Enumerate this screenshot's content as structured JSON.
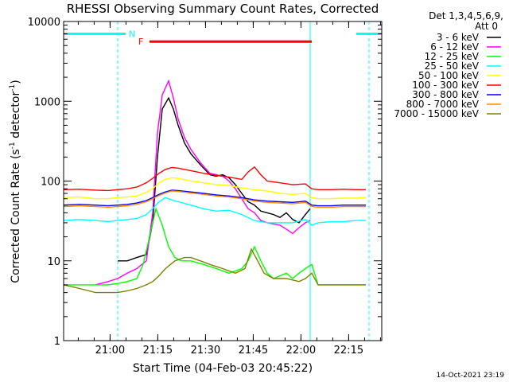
{
  "chart_data": {
    "type": "line",
    "title": "RHESSI Observing Summary Count Rates, Corrected",
    "xlabel": "Start Time (04-Feb-03 20:45:22)",
    "ylabel_main": "Corrected Count Rate (s",
    "ylabel_sup1": "-1",
    "ylabel_mid": " detector",
    "ylabel_sup2": "-1",
    "ylabel_end": ")",
    "yscale": "log",
    "ylim": [
      1,
      10000
    ],
    "y_ticks": [
      {
        "value": 1,
        "label": "1"
      },
      {
        "value": 10,
        "label": "10"
      },
      {
        "value": 100,
        "label": "100"
      },
      {
        "value": 1000,
        "label": "1000"
      },
      {
        "value": 10000,
        "label": "10000"
      }
    ],
    "x_unit": "minutes since 20:45:22",
    "xlim": [
      0,
      100
    ],
    "x_ticks": [
      {
        "value": 14.6,
        "label": "21:00"
      },
      {
        "value": 29.6,
        "label": "21:15"
      },
      {
        "value": 44.6,
        "label": "21:30"
      },
      {
        "value": 59.6,
        "label": "21:45"
      },
      {
        "value": 74.6,
        "label": "22:00"
      },
      {
        "value": 89.6,
        "label": "22:15"
      }
    ],
    "legend_header": [
      "Det 1,3,4,5,6,9,",
      "Att 0"
    ],
    "legend_position": "right",
    "series": [
      {
        "name": "3 - 6 keV",
        "color": "#000000",
        "x": [
          17,
          20,
          23,
          26,
          28,
          29.5,
          31,
          33,
          34.5,
          36,
          38,
          40,
          43,
          46,
          48,
          50,
          52,
          54,
          56,
          58,
          60,
          62,
          64,
          66,
          68,
          70,
          72,
          74,
          76,
          77.5
        ],
        "y": [
          10,
          10,
          11,
          12,
          30,
          200,
          800,
          1100,
          800,
          500,
          300,
          220,
          160,
          120,
          115,
          120,
          110,
          90,
          70,
          55,
          50,
          42,
          40,
          38,
          35,
          40,
          33,
          30,
          38,
          45
        ]
      },
      {
        "name": "6 - 12 keV",
        "color": "#ff00ff",
        "x": [
          10,
          14,
          17,
          20,
          23,
          26,
          28,
          29.5,
          31,
          33,
          34.5,
          36,
          38,
          40,
          43,
          46,
          48,
          50,
          52,
          54,
          56,
          58,
          60,
          62,
          64,
          66,
          68,
          70,
          72,
          74,
          76,
          77.5
        ],
        "y": [
          5,
          5.5,
          6,
          7,
          8,
          10,
          40,
          400,
          1200,
          1800,
          1100,
          600,
          350,
          250,
          170,
          125,
          120,
          115,
          100,
          80,
          60,
          45,
          40,
          32,
          30,
          29,
          28,
          25,
          22,
          26,
          30,
          32
        ]
      },
      {
        "name": "12 - 25 keV",
        "color": "#00ff00",
        "x": [
          0,
          5,
          10,
          14,
          17,
          20,
          23,
          25,
          27,
          29,
          31,
          33,
          35,
          37,
          40,
          44,
          48,
          52,
          56,
          58,
          60,
          62,
          64,
          66,
          68,
          70,
          72,
          74,
          76,
          78,
          80,
          84,
          88,
          92,
          95
        ],
        "y": [
          5,
          5,
          5,
          5,
          5.2,
          5.5,
          6,
          9,
          20,
          45,
          28,
          15,
          11,
          10,
          10,
          9,
          8,
          7,
          8,
          10,
          15,
          10,
          7,
          6,
          6.5,
          7,
          6,
          7,
          8,
          9,
          5,
          5,
          5,
          5,
          5
        ]
      },
      {
        "name": "25 - 50 keV",
        "color": "#00ffff",
        "x": [
          0,
          5,
          10,
          14,
          17,
          20,
          23,
          26,
          28,
          30,
          32,
          34,
          36,
          40,
          44,
          48,
          52,
          56,
          60,
          64,
          68,
          72,
          76,
          78,
          80,
          84,
          88,
          92,
          95
        ],
        "y": [
          32,
          33,
          32,
          31,
          32,
          33,
          34,
          38,
          45,
          55,
          62,
          58,
          55,
          50,
          45,
          42,
          43,
          38,
          32,
          30,
          30,
          30,
          33,
          28,
          30,
          31,
          31,
          32,
          32
        ]
      },
      {
        "name": "50 - 100 keV",
        "color": "#ffff00",
        "x": [
          0,
          5,
          10,
          14,
          17,
          20,
          23,
          26,
          28,
          30,
          32,
          34,
          36,
          40,
          44,
          48,
          52,
          56,
          60,
          64,
          68,
          72,
          76,
          78,
          80,
          84,
          88,
          92,
          95
        ],
        "y": [
          62,
          63,
          60,
          60,
          62,
          63,
          65,
          72,
          80,
          95,
          105,
          110,
          108,
          100,
          95,
          90,
          88,
          82,
          78,
          75,
          70,
          68,
          70,
          62,
          60,
          60,
          61,
          61,
          62
        ]
      },
      {
        "name": "100 - 300 keV",
        "color": "#ff0000",
        "x": [
          0,
          5,
          10,
          14,
          17,
          20,
          23,
          26,
          28,
          30,
          32,
          34,
          36,
          40,
          44,
          48,
          52,
          56,
          58,
          60,
          62,
          64,
          68,
          72,
          76,
          78,
          80,
          84,
          88,
          92,
          95
        ],
        "y": [
          78,
          79,
          77,
          76,
          78,
          80,
          84,
          95,
          108,
          125,
          140,
          148,
          145,
          135,
          125,
          118,
          112,
          105,
          130,
          150,
          120,
          100,
          95,
          90,
          92,
          80,
          78,
          78,
          79,
          78,
          78
        ]
      },
      {
        "name": "300 - 800 keV",
        "color": "#0000ff",
        "x": [
          0,
          5,
          10,
          14,
          17,
          20,
          23,
          26,
          28,
          30,
          32,
          34,
          36,
          40,
          44,
          48,
          52,
          56,
          60,
          64,
          68,
          72,
          76,
          78,
          80,
          84,
          88,
          92,
          95
        ],
        "y": [
          50,
          51,
          50,
          49,
          50,
          51,
          53,
          57,
          62,
          68,
          73,
          77,
          76,
          73,
          70,
          67,
          65,
          62,
          58,
          56,
          55,
          54,
          56,
          50,
          49,
          49,
          50,
          50,
          50
        ]
      },
      {
        "name": "800 - 7000 keV",
        "color": "#ff8c00",
        "x": [
          0,
          5,
          10,
          14,
          17,
          20,
          23,
          26,
          28,
          30,
          32,
          34,
          36,
          40,
          44,
          48,
          52,
          56,
          60,
          64,
          68,
          72,
          76,
          78,
          80,
          84,
          88,
          92,
          95
        ],
        "y": [
          48,
          49,
          48,
          47,
          48,
          49,
          51,
          55,
          60,
          66,
          71,
          75,
          74,
          71,
          68,
          65,
          63,
          60,
          56,
          54,
          53,
          52,
          54,
          48,
          47,
          47,
          48,
          48,
          48
        ]
      },
      {
        "name": "7000 - 15000 keV",
        "color": "#808000",
        "x": [
          0,
          5,
          10,
          14,
          17,
          20,
          23,
          26,
          28,
          30,
          32,
          35,
          38,
          40,
          43,
          46,
          50,
          54,
          57,
          59,
          61,
          63,
          66,
          70,
          74,
          76,
          78,
          80,
          84,
          88,
          92,
          95
        ],
        "y": [
          5,
          4.5,
          4,
          4,
          4,
          4.2,
          4.5,
          5,
          5.5,
          6.5,
          8,
          10,
          11,
          11,
          10,
          9,
          8,
          7,
          8,
          14,
          10,
          7,
          6,
          6,
          5.5,
          6,
          7,
          5,
          5,
          5,
          5,
          5
        ]
      }
    ],
    "flags": [
      {
        "label": "N",
        "color": "#00ffff",
        "value": 7000,
        "segments": [
          [
            0,
            19.5
          ],
          [
            92,
            100
          ]
        ]
      },
      {
        "label": "F",
        "color": "#ff0000",
        "value": 5600,
        "segments": [
          [
            27,
            78
          ]
        ]
      }
    ],
    "vertical_markers": [
      {
        "x": 17,
        "style": "dashed",
        "color": "#00ffff"
      },
      {
        "x": 77.5,
        "style": "solid",
        "color": "#00ffff"
      },
      {
        "x": 96,
        "style": "dashed",
        "color": "#00ffff"
      }
    ]
  },
  "footer": {
    "timestamp": "14-Oct-2021 23:19"
  }
}
